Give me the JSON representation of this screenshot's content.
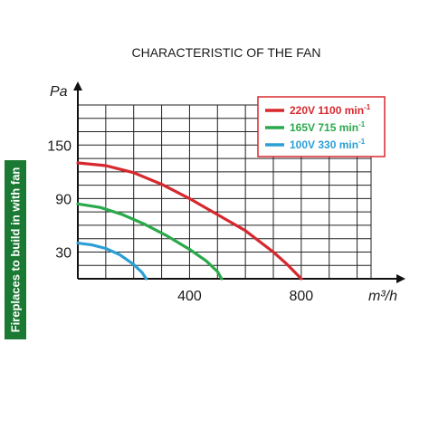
{
  "sidebar": {
    "label": "Fireplaces to build in with fan",
    "color": "#1a7a34"
  },
  "chart_data": {
    "type": "line",
    "title": "CHARACTERISTIC OF THE FAN",
    "xlabel": "m³/h",
    "ylabel": "Pa",
    "xlim": [
      0,
      1050
    ],
    "ylim": [
      0,
      195
    ],
    "x_ticks": [
      400,
      800
    ],
    "y_ticks": [
      30,
      90,
      150
    ],
    "grid": true,
    "legend_position": "top-right",
    "series": [
      {
        "name": "220V 1100 min-1",
        "legend_main": "220V 1100 min",
        "legend_sup": "-1",
        "color": "#d7282e",
        "x": [
          0,
          100,
          200,
          300,
          400,
          500,
          600,
          700,
          750,
          800
        ],
        "y": [
          130,
          127,
          119,
          106,
          90,
          72,
          54,
          30,
          16,
          0
        ]
      },
      {
        "name": "165V 715 min-1",
        "legend_main": "165V 715 min",
        "legend_sup": "-1",
        "color": "#2aa94b",
        "x": [
          0,
          80,
          160,
          240,
          320,
          400,
          460,
          500,
          515
        ],
        "y": [
          84,
          80,
          72,
          61,
          48,
          33,
          20,
          8,
          0
        ]
      },
      {
        "name": "100V 330 min-1",
        "legend_main": "100V 330 min",
        "legend_sup": "-1",
        "color": "#2b9fd6",
        "x": [
          0,
          50,
          100,
          150,
          200,
          230,
          245
        ],
        "y": [
          40,
          38,
          34,
          27,
          16,
          7,
          0
        ]
      }
    ]
  }
}
